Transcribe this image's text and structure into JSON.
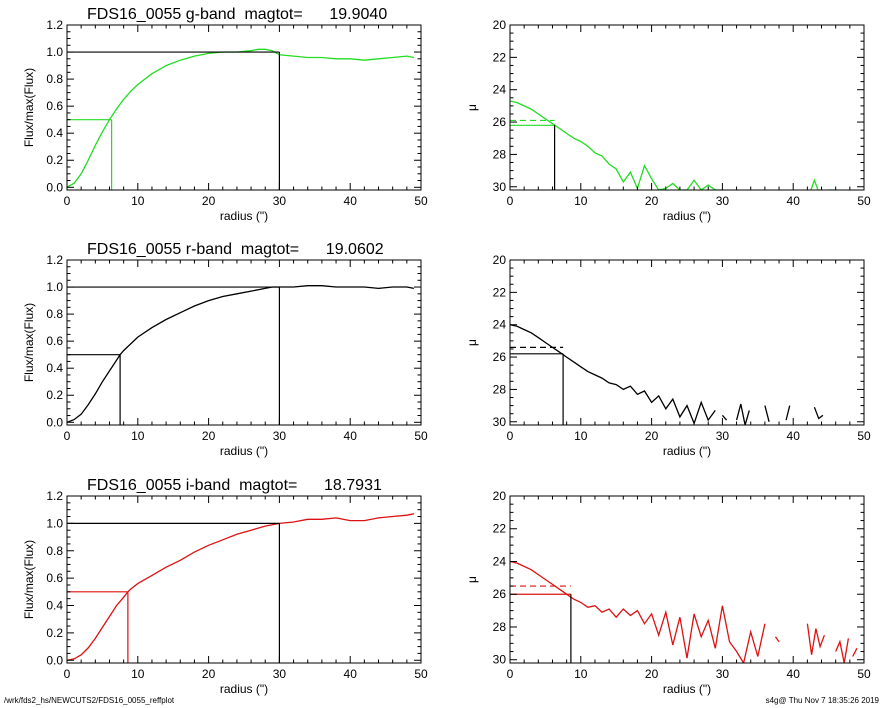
{
  "footer": {
    "path": "/wrk/fds2_hs/NEWCUTS2/FDS16_0055_reffplot",
    "stamp": "s4g@  Thu Nov  7 18:35:26 2019"
  },
  "chart_data": [
    {
      "type": "line",
      "panel": "g-band growth curve",
      "title": "FDS16_0055 g-band  magtot=      19.9040",
      "xlabel": "radius (\")",
      "ylabel": "Flux/max(Flux)",
      "xlim": [
        0,
        50
      ],
      "ylim": [
        -0.02,
        1.2
      ],
      "xticks": [
        0,
        10,
        20,
        30,
        40,
        50
      ],
      "yticks": [
        0.0,
        0.2,
        0.4,
        0.6,
        0.8,
        1.0,
        1.2
      ],
      "ytick_labels": [
        "0.0",
        "0.2",
        "0.4",
        "0.6",
        "0.8",
        "1.0",
        "1.2"
      ],
      "color": "#22dd22",
      "series": [
        {
          "x": [
            0,
            1,
            2,
            3,
            4,
            5,
            6,
            7,
            8,
            9,
            10,
            12,
            14,
            16,
            18,
            20,
            22,
            24,
            26,
            27,
            28,
            29,
            30,
            32,
            34,
            36,
            38,
            40,
            42,
            44,
            46,
            48,
            49
          ],
          "y": [
            0.0,
            0.03,
            0.1,
            0.2,
            0.31,
            0.41,
            0.5,
            0.58,
            0.65,
            0.71,
            0.76,
            0.84,
            0.9,
            0.94,
            0.97,
            0.99,
            1.0,
            1.0,
            1.01,
            1.02,
            1.02,
            1.01,
            0.98,
            0.97,
            0.96,
            0.96,
            0.95,
            0.95,
            0.94,
            0.95,
            0.96,
            0.97,
            0.96
          ]
        }
      ],
      "half_light": {
        "radius": 6.3,
        "level": 0.5
      },
      "total": {
        "radius": 30.0,
        "level": 1.0
      }
    },
    {
      "type": "line",
      "panel": "g-band surface brightness",
      "xlabel": "radius (\")",
      "ylabel": "μ",
      "xlim": [
        0,
        50
      ],
      "ylim": [
        30.2,
        20
      ],
      "xticks": [
        0,
        10,
        20,
        30,
        40,
        50
      ],
      "yticks": [
        20,
        22,
        24,
        26,
        28,
        30
      ],
      "ytick_labels": [
        "20",
        "22",
        "24",
        "26",
        "28",
        "30"
      ],
      "color": "#22dd22",
      "series": [
        {
          "x": [
            0,
            1,
            2,
            3,
            4,
            5,
            6,
            7,
            8,
            9,
            10,
            11,
            12,
            13,
            14,
            15,
            16,
            17,
            18,
            19,
            20,
            21,
            22,
            23,
            24,
            25,
            26,
            27,
            28,
            29,
            30
          ],
          "y": [
            24.7,
            24.8,
            25.0,
            25.2,
            25.5,
            25.8,
            26.1,
            26.4,
            26.7,
            27.0,
            27.2,
            27.5,
            27.9,
            28.1,
            28.6,
            28.9,
            29.7,
            29.1,
            30.1,
            28.7,
            29.5,
            30.2,
            30.1,
            29.8,
            30.2,
            30.2,
            29.6,
            30.2,
            29.9,
            30.2,
            30.2
          ]
        },
        {
          "x": [
            42.5,
            43,
            43.5
          ],
          "y": [
            30.2,
            29.6,
            30.2
          ]
        },
        {
          "x": [
            45,
            46
          ],
          "y": [
            30.2,
            30.2
          ]
        }
      ],
      "reference": {
        "x_end": 6.3,
        "solid_level": 26.2,
        "dashed_level": 25.9
      }
    },
    {
      "type": "line",
      "panel": "r-band growth curve",
      "title": "FDS16_0055 r-band  magtot=      19.0602",
      "xlabel": "radius (\")",
      "ylabel": "Flux/max(Flux)",
      "xlim": [
        0,
        50
      ],
      "ylim": [
        -0.02,
        1.2
      ],
      "xticks": [
        0,
        10,
        20,
        30,
        40,
        50
      ],
      "yticks": [
        0.0,
        0.2,
        0.4,
        0.6,
        0.8,
        1.0,
        1.2
      ],
      "ytick_labels": [
        "0.0",
        "0.2",
        "0.4",
        "0.6",
        "0.8",
        "1.0",
        "1.2"
      ],
      "color": "#000000",
      "series": [
        {
          "x": [
            0,
            1,
            2,
            3,
            4,
            5,
            6,
            7,
            7.5,
            8,
            9,
            10,
            12,
            14,
            16,
            18,
            20,
            22,
            24,
            26,
            28,
            29,
            30,
            32,
            34,
            36,
            38,
            40,
            42,
            44,
            46,
            48,
            49
          ],
          "y": [
            0.0,
            0.02,
            0.06,
            0.13,
            0.21,
            0.3,
            0.38,
            0.46,
            0.5,
            0.53,
            0.58,
            0.63,
            0.7,
            0.76,
            0.81,
            0.86,
            0.9,
            0.93,
            0.95,
            0.97,
            0.99,
            1.0,
            1.0,
            1.0,
            1.01,
            1.01,
            1.0,
            1.0,
            1.0,
            0.99,
            1.0,
            1.0,
            0.99
          ]
        }
      ],
      "half_light": {
        "radius": 7.5,
        "level": 0.5
      },
      "total": {
        "radius": 30.0,
        "level": 1.0
      }
    },
    {
      "type": "line",
      "panel": "r-band surface brightness",
      "xlabel": "radius (\")",
      "ylabel": "μ",
      "xlim": [
        0,
        50
      ],
      "ylim": [
        30.2,
        20
      ],
      "xticks": [
        0,
        10,
        20,
        30,
        40,
        50
      ],
      "yticks": [
        20,
        22,
        24,
        26,
        28,
        30
      ],
      "ytick_labels": [
        "20",
        "22",
        "24",
        "26",
        "28",
        "30"
      ],
      "color": "#000000",
      "series": [
        {
          "x": [
            0,
            1,
            2,
            3,
            4,
            5,
            6,
            7,
            8,
            9,
            10,
            11,
            12,
            13,
            14,
            15,
            16,
            17,
            18,
            19,
            20,
            21,
            22,
            23,
            24,
            25,
            26,
            27,
            28,
            29
          ],
          "y": [
            24.0,
            24.1,
            24.3,
            24.5,
            24.8,
            25.1,
            25.4,
            25.7,
            26.0,
            26.3,
            26.6,
            26.9,
            27.1,
            27.3,
            27.6,
            27.7,
            28.0,
            27.8,
            28.3,
            28.1,
            28.8,
            28.4,
            29.2,
            28.6,
            29.7,
            29.0,
            30.1,
            28.8,
            29.9,
            29.3
          ]
        },
        {
          "x": [
            30,
            30.6
          ],
          "y": [
            29.6,
            29.9
          ]
        },
        {
          "x": [
            32,
            32.6,
            33.2,
            33.8
          ],
          "y": [
            29.9,
            28.9,
            30.2,
            29.3
          ]
        },
        {
          "x": [
            36,
            36.6
          ],
          "y": [
            29.0,
            30.0
          ]
        },
        {
          "x": [
            39,
            39.5
          ],
          "y": [
            29.9,
            29.0
          ]
        },
        {
          "x": [
            43,
            43.6,
            44.2
          ],
          "y": [
            29.1,
            29.8,
            29.6
          ]
        }
      ],
      "reference": {
        "x_end": 7.5,
        "solid_level": 25.8,
        "dashed_level": 25.4
      }
    },
    {
      "type": "line",
      "panel": "i-band growth curve",
      "title": "FDS16_0055 i-band  magtot=      18.7931",
      "xlabel": "radius (\")",
      "ylabel": "Flux/max(Flux)",
      "xlim": [
        0,
        50
      ],
      "ylim": [
        -0.02,
        1.2
      ],
      "xticks": [
        0,
        10,
        20,
        30,
        40,
        50
      ],
      "yticks": [
        0.0,
        0.2,
        0.4,
        0.6,
        0.8,
        1.0,
        1.2
      ],
      "ytick_labels": [
        "0.0",
        "0.2",
        "0.4",
        "0.6",
        "0.8",
        "1.0",
        "1.2"
      ],
      "color": "#dd1111",
      "series": [
        {
          "x": [
            0,
            1,
            2,
            3,
            4,
            5,
            6,
            7,
            8,
            8.6,
            9,
            10,
            12,
            14,
            16,
            18,
            20,
            22,
            24,
            26,
            28,
            30,
            32,
            34,
            36,
            38,
            40,
            42,
            44,
            46,
            48,
            49
          ],
          "y": [
            0.0,
            0.01,
            0.04,
            0.09,
            0.16,
            0.24,
            0.32,
            0.4,
            0.46,
            0.5,
            0.52,
            0.56,
            0.62,
            0.68,
            0.73,
            0.79,
            0.84,
            0.88,
            0.92,
            0.95,
            0.98,
            1.0,
            1.01,
            1.03,
            1.03,
            1.04,
            1.02,
            1.02,
            1.04,
            1.05,
            1.06,
            1.07
          ]
        }
      ],
      "half_light": {
        "radius": 8.6,
        "level": 0.5
      },
      "total": {
        "radius": 30.0,
        "level": 1.0
      }
    },
    {
      "type": "line",
      "panel": "i-band surface brightness",
      "xlabel": "radius (\")",
      "ylabel": "μ",
      "xlim": [
        0,
        50
      ],
      "ylim": [
        30.2,
        20
      ],
      "xticks": [
        0,
        10,
        20,
        30,
        40,
        50
      ],
      "yticks": [
        20,
        22,
        24,
        26,
        28,
        30
      ],
      "ytick_labels": [
        "20",
        "22",
        "24",
        "26",
        "28",
        "30"
      ],
      "color": "#dd1111",
      "series": [
        {
          "x": [
            0,
            1,
            2,
            3,
            4,
            5,
            6,
            7,
            8,
            9,
            10,
            11,
            12,
            13,
            14,
            15,
            16,
            17,
            18,
            19,
            20,
            21,
            22,
            23,
            24,
            25,
            26,
            27,
            28,
            29,
            30,
            31,
            32,
            33,
            34,
            35,
            36
          ],
          "y": [
            24.0,
            24.1,
            24.3,
            24.5,
            24.8,
            25.1,
            25.4,
            25.7,
            26.0,
            26.3,
            26.5,
            26.8,
            26.7,
            27.1,
            26.9,
            27.4,
            26.9,
            27.3,
            27.0,
            27.8,
            27.2,
            28.5,
            27.1,
            29.1,
            27.4,
            29.9,
            27.2,
            28.6,
            27.6,
            29.3,
            26.7,
            28.9,
            29.5,
            30.2,
            28.3,
            29.8,
            27.8
          ]
        },
        {
          "x": [
            37.5,
            38
          ],
          "y": [
            28.6,
            28.9
          ]
        },
        {
          "x": [
            42,
            42.6,
            43.2,
            43.8,
            44.4
          ],
          "y": [
            27.8,
            29.7,
            28.1,
            29.2,
            28.5
          ]
        },
        {
          "x": [
            46,
            46.6,
            47.2,
            47.8
          ],
          "y": [
            29.5,
            28.9,
            30.2,
            28.7
          ]
        },
        {
          "x": [
            48.4,
            49
          ],
          "y": [
            29.8,
            29.3
          ]
        }
      ],
      "reference": {
        "x_end": 8.6,
        "solid_level": 26.0,
        "dashed_level": 25.5
      }
    }
  ]
}
